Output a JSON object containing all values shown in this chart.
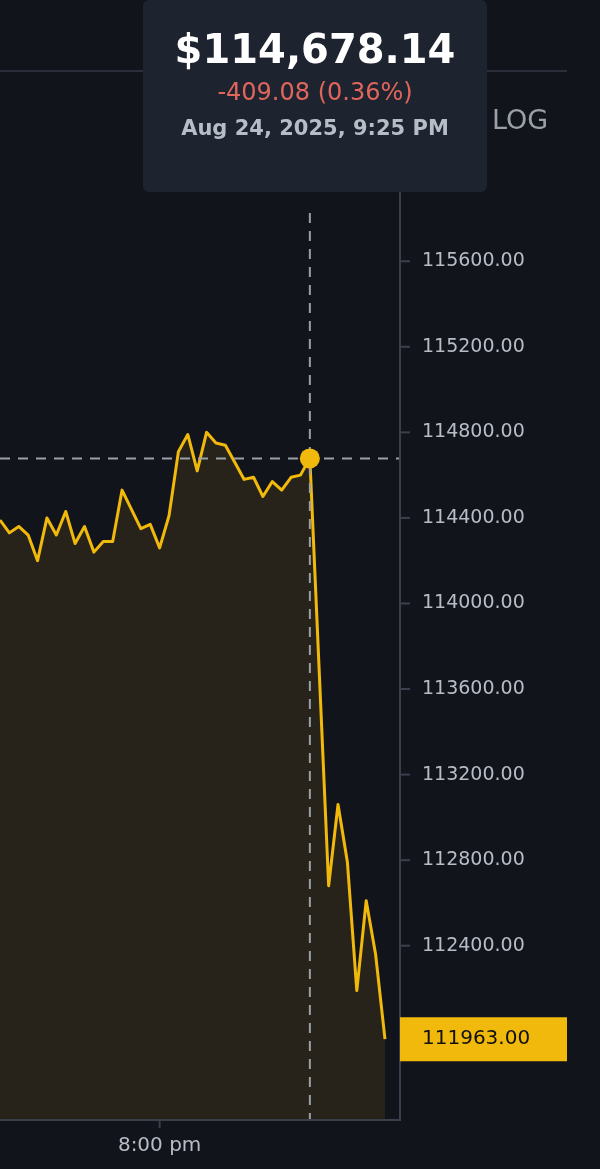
{
  "chart_data": {
    "type": "area",
    "categories": [
      null,
      null,
      null,
      null,
      null,
      null,
      null,
      null,
      null,
      null,
      null,
      null,
      null,
      null,
      null,
      null,
      null,
      "8:00 pm",
      null,
      null,
      null,
      null,
      null,
      null,
      null,
      null,
      null,
      null,
      null,
      null,
      null,
      null,
      null,
      null,
      null,
      null,
      null,
      null,
      null,
      null,
      null,
      null
    ],
    "series": [
      {
        "color": "#f0b90b",
        "values": [
          114390,
          114330,
          114360,
          114320,
          114200,
          114400,
          114320,
          114430,
          114280,
          114360,
          114240,
          114290,
          114290,
          114530,
          114440,
          114350,
          114370,
          114260,
          114410,
          114710,
          114790,
          114620,
          114800,
          114750,
          114740,
          114660,
          114580,
          114590,
          114500,
          114570,
          114530,
          114590,
          114600,
          114680,
          113680,
          112680,
          113060,
          112790,
          112190,
          112610,
          112360,
          111963
        ]
      }
    ],
    "ylim": [
      111585,
      116050
    ],
    "yticks": [
      {
        "value": 112400,
        "label": "112400.00"
      },
      {
        "value": 112800,
        "label": "112800.00"
      },
      {
        "value": 113200,
        "label": "113200.00"
      },
      {
        "value": 113600,
        "label": "113600.00"
      },
      {
        "value": 114000,
        "label": "114000.00"
      },
      {
        "value": 114400,
        "label": "114400.00"
      },
      {
        "value": 114800,
        "label": "114800.00"
      },
      {
        "value": 115200,
        "label": "115200.00"
      },
      {
        "value": 115600,
        "label": "115600.00"
      }
    ],
    "grid": false,
    "legend": false,
    "ref_lines": [
      {
        "axis": "y",
        "value": 114678.14,
        "color": "#9aa0a8",
        "line_style": "dashed"
      },
      {
        "axis": "x",
        "color": "#9aa0a8",
        "line_style": "dashed"
      }
    ],
    "annotations": [
      "$114,678.14",
      "-409.08 (0.36%)",
      "Aug 24, 2025, 9:25 PM",
      "LOG",
      "111963.00"
    ]
  }
}
